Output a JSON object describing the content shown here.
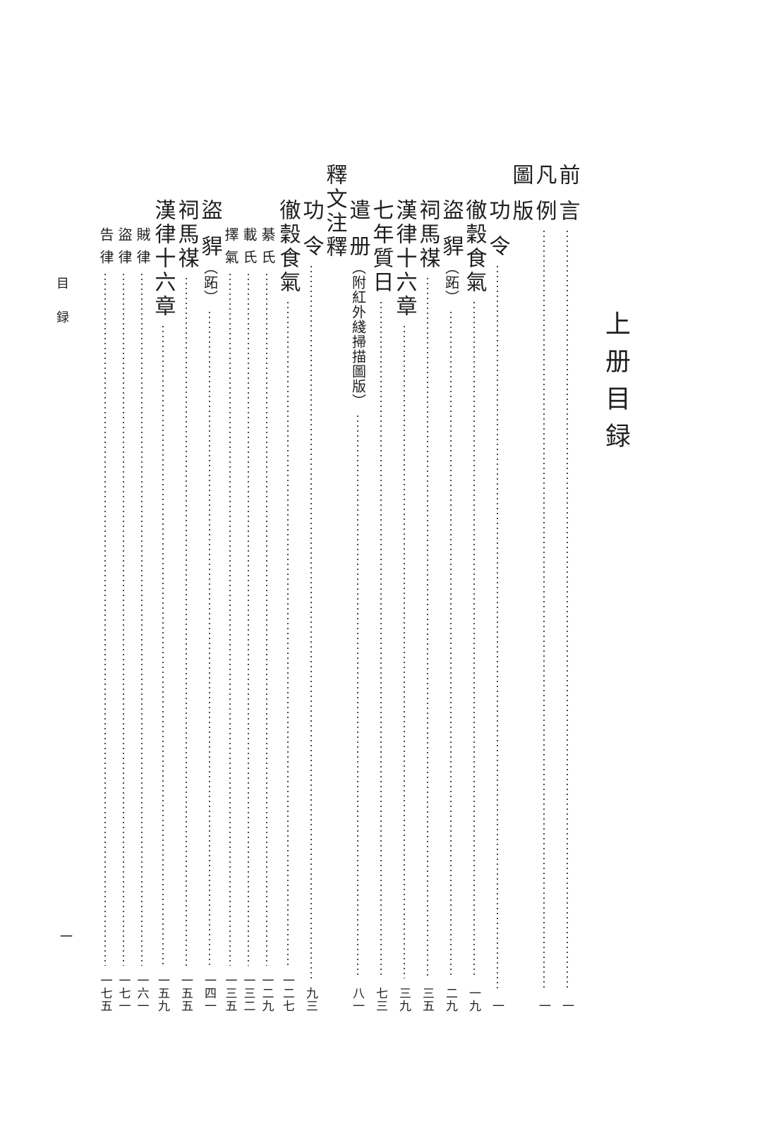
{
  "page": {
    "book_title": "上册目録",
    "margin_header": "目録",
    "folio": "一"
  },
  "colors": {
    "background": "#ffffff",
    "text": "#1f1f1f",
    "leader_dots": "#4a4a4a"
  },
  "toc": {
    "entries": [
      {
        "level": 1,
        "pre": "前",
        "main": "言",
        "paren": "",
        "page": "一"
      },
      {
        "level": 1,
        "pre": "凡",
        "main": "例",
        "paren": "",
        "page": "一"
      },
      {
        "level": 1,
        "pre": "圖",
        "main": "版",
        "paren": "",
        "page": "",
        "header": true
      },
      {
        "level": 2,
        "pre": "功",
        "main": "令",
        "paren": "",
        "page": "一"
      },
      {
        "level": 2,
        "pre": "",
        "main": "徹穀食氣",
        "paren": "",
        "page": "一九"
      },
      {
        "level": 2,
        "pre": "盜",
        "main": "貋",
        "paren": "（跖）",
        "page": "二九"
      },
      {
        "level": 2,
        "pre": "",
        "main": "祠馬禖",
        "paren": "",
        "page": "三五"
      },
      {
        "level": 2,
        "pre": "",
        "main": "漢律十六章",
        "paren": "",
        "page": "三九"
      },
      {
        "level": 2,
        "pre": "",
        "main": "七年質日",
        "paren": "",
        "page": "七三"
      },
      {
        "level": 2,
        "pre": "遣",
        "main": "册",
        "paren": "（附紅外綫掃描圖版）",
        "page": "八一"
      },
      {
        "level": 1,
        "pre": "",
        "main": "釋文注釋",
        "paren": "",
        "page": "",
        "header": true
      },
      {
        "level": 2,
        "pre": "功",
        "main": "令",
        "paren": "",
        "page": "九三"
      },
      {
        "level": 2,
        "pre": "",
        "main": "徹穀食氣",
        "paren": "",
        "page": "一二七"
      },
      {
        "level": 3,
        "pre": "綦",
        "main": "氏",
        "paren": "",
        "page": "一二九"
      },
      {
        "level": 3,
        "pre": "載",
        "main": "氏",
        "paren": "",
        "page": "一三二"
      },
      {
        "level": 3,
        "pre": "擇",
        "main": "氣",
        "paren": "",
        "page": "一三五"
      },
      {
        "level": 2,
        "pre": "盜",
        "main": "貋",
        "paren": "（跖）",
        "page": "一四一"
      },
      {
        "level": 2,
        "pre": "",
        "main": "祠馬禖",
        "paren": "",
        "page": "一五五"
      },
      {
        "level": 2,
        "pre": "",
        "main": "漢律十六章",
        "paren": "",
        "page": "一五九"
      },
      {
        "level": 3,
        "pre": "賊",
        "main": "律",
        "paren": "",
        "page": "一六一"
      },
      {
        "level": 3,
        "pre": "盜",
        "main": "律",
        "paren": "",
        "page": "一七一"
      },
      {
        "level": 3,
        "pre": "告",
        "main": "律",
        "paren": "",
        "page": "一七五"
      }
    ]
  }
}
